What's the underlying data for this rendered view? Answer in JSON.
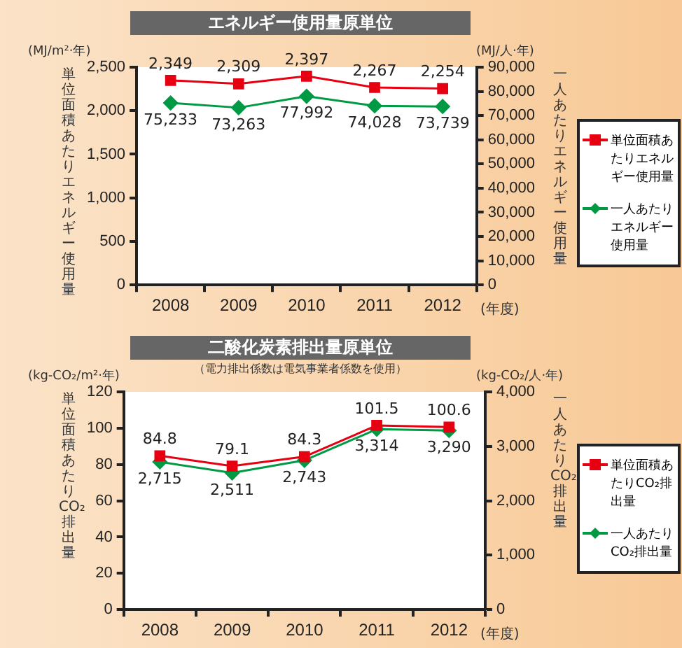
{
  "chart_data": [
    {
      "type": "line",
      "title": "エネルギー使用量原単位",
      "ylabel": "単位面積あたりエネルギー使用量",
      "y2label": "一人あたりエネルギー使用量",
      "xlabel": "(年度)",
      "annotations": [
        "(MJ/m²·年)",
        "(MJ/人·年)"
      ],
      "categories": [
        "2008",
        "2009",
        "2010",
        "2011",
        "2012"
      ],
      "series": [
        {
          "name": "単位面積あたりエネルギー使用量",
          "color": "#e60012",
          "marker": "square",
          "values": [
            2349,
            2309,
            2397,
            2267,
            2254
          ],
          "value_labels": [
            "2,349",
            "2,309",
            "2,397",
            "2,267",
            "2,254"
          ]
        },
        {
          "name": "一人あたりエネルギー使用量",
          "color": "#009944",
          "marker": "diamond",
          "axis": "y2",
          "values": [
            75233,
            73263,
            77992,
            74028,
            73739
          ],
          "value_labels": [
            "75,233",
            "73,263",
            "77,992",
            "74,028",
            "73,739"
          ]
        }
      ],
      "ylim": [
        0,
        2500
      ],
      "yticks": [
        0,
        500,
        {
          "value": 1000,
          "label": "1,000"
        },
        {
          "value": 1500,
          "label": "1,500"
        },
        {
          "value": 2000,
          "label": "2,000"
        },
        {
          "value": 2500,
          "label": "2,500"
        }
      ],
      "y2lim": [
        0,
        90000
      ],
      "y2ticks": [
        0,
        {
          "value": 10000,
          "label": "10,000"
        },
        {
          "value": 20000,
          "label": "20,000"
        },
        {
          "value": 30000,
          "label": "30,000"
        },
        {
          "value": 40000,
          "label": "40,000"
        },
        {
          "value": 50000,
          "label": "50,000"
        },
        {
          "value": 60000,
          "label": "60,000"
        },
        {
          "value": 70000,
          "label": "70,000"
        },
        {
          "value": 80000,
          "label": "80,000"
        },
        {
          "value": 90000,
          "label": "90,000"
        }
      ],
      "legend": "right",
      "grid": false
    },
    {
      "type": "line",
      "title": "二酸化炭素排出量原単位",
      "subtitle": "（電力排出係数は電気事業者係数を使用）",
      "ylabel": "単位面積あたりCO₂排出量",
      "y2label": "一人あたりCO₂排出量",
      "xlabel": "(年度)",
      "annotations": [
        "(kg-CO₂/m²·年)",
        "(kg-CO₂/人·年)"
      ],
      "categories": [
        "2008",
        "2009",
        "2010",
        "2011",
        "2012"
      ],
      "series": [
        {
          "name": "単位面積あたりCO₂排出量",
          "color": "#e60012",
          "marker": "square",
          "values": [
            84.8,
            79.1,
            84.3,
            101.5,
            100.6
          ]
        },
        {
          "name": "一人あたりCO₂排出量",
          "color": "#009944",
          "marker": "diamond",
          "axis": "y2",
          "values": [
            2715,
            2511,
            2743,
            3314,
            3290
          ],
          "value_labels": [
            "2,715",
            "2,511",
            "2,743",
            "3,314",
            "3,290"
          ]
        }
      ],
      "ylim": [
        0,
        120
      ],
      "yticks": [
        0,
        20,
        40,
        60,
        80,
        100,
        120
      ],
      "y2lim": [
        0,
        4000
      ],
      "y2ticks": [
        0,
        {
          "value": 1000,
          "label": "1,000"
        },
        {
          "value": 2000,
          "label": "2,000"
        },
        {
          "value": 3000,
          "label": "3,000"
        },
        {
          "value": 4000,
          "label": "4,000"
        }
      ],
      "data_labels": true,
      "legend": "right",
      "grid": false
    }
  ]
}
